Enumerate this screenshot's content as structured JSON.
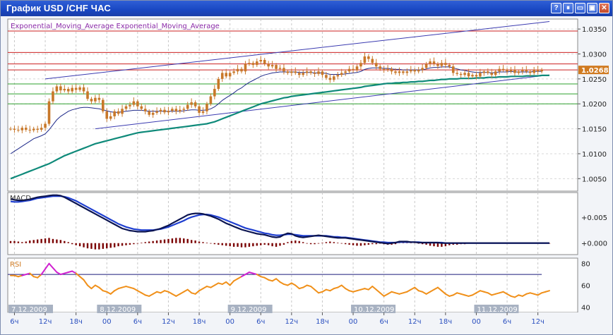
{
  "window": {
    "title": "График USD /CHF  ЧАС",
    "buttons": {
      "help": "?",
      "pause": "⏸",
      "minimize": "▭",
      "restore": "▣",
      "close": "✕"
    }
  },
  "colors": {
    "price_axis_bg": "#ffffff",
    "candle": "#c8782a",
    "fast_ema": "#1f2a8a",
    "slow_ema": "#0f8a7a",
    "upper_channel": "#3a3ab0",
    "red_level": "#cc2020",
    "green_level": "#2ea02e",
    "current_price_bg": "#d07a20",
    "macd_dark": "#0b1450",
    "macd_blue": "#1f3fd0",
    "macd_hist": "#7a0000",
    "rsi_line": "#f0901a",
    "rsi_over": "#d020d0",
    "rsi_level": "#1a1a7a"
  },
  "chart_data": [
    {
      "type": "candlestick",
      "legend": "Exponential_Moving_Average Exponential_Moving_Average",
      "y_ticks": [
        "1.0350",
        "1.0300",
        "1.0250",
        "1.0200",
        "1.0150",
        "1.0100",
        "1.0050"
      ],
      "ylim": [
        1.0025,
        1.037
      ],
      "current_price": "1.0268",
      "grid": true,
      "red_levels": [
        1.0346,
        1.0303,
        1.028,
        1.0268
      ],
      "green_levels": [
        1.024,
        1.022,
        1.02
      ],
      "close": [
        1.015,
        1.0148,
        1.0147,
        1.0152,
        1.0148,
        1.0147,
        1.015,
        1.0148,
        1.0152,
        1.016,
        1.0205,
        1.0225,
        1.0235,
        1.0227,
        1.023,
        1.0225,
        1.0232,
        1.0228,
        1.0233,
        1.0225,
        1.021,
        1.0205,
        1.0212,
        1.0208,
        1.0185,
        1.017,
        1.0175,
        1.0185,
        1.018,
        1.019,
        1.0195,
        1.0198,
        1.0205,
        1.0195,
        1.019,
        1.0185,
        1.0178,
        1.0182,
        1.0185,
        1.0188,
        1.0183,
        1.0186,
        1.019,
        1.0185,
        1.0188,
        1.019,
        1.0198,
        1.0203,
        1.0195,
        1.0182,
        1.0185,
        1.02,
        1.0215,
        1.023,
        1.025,
        1.0262,
        1.0255,
        1.0262,
        1.0265,
        1.027,
        1.0265,
        1.028,
        1.0282,
        1.0278,
        1.0285,
        1.0288,
        1.028,
        1.0275,
        1.0278,
        1.027,
        1.0272,
        1.0265,
        1.0262,
        1.0265,
        1.0262,
        1.0258,
        1.0262,
        1.0265,
        1.0262,
        1.026,
        1.0265,
        1.0258,
        1.0252,
        1.0248,
        1.0255,
        1.0258,
        1.0262,
        1.0265,
        1.027,
        1.0268,
        1.0275,
        1.0282,
        1.0295,
        1.029,
        1.0282,
        1.0275,
        1.027,
        1.0268,
        1.027,
        1.0265,
        1.0262,
        1.0265,
        1.0262,
        1.0265,
        1.0268,
        1.0265,
        1.0268,
        1.0272,
        1.028,
        1.0285,
        1.028,
        1.0276,
        1.0282,
        1.0278,
        1.0275,
        1.0262,
        1.026,
        1.0258,
        1.0262,
        1.0255,
        1.0258,
        1.0255,
        1.0262,
        1.0265,
        1.0262,
        1.0258,
        1.0265,
        1.027,
        1.0268,
        1.0265,
        1.0268,
        1.0262,
        1.0265,
        1.0268,
        1.0265,
        1.0262,
        1.0268,
        1.0265,
        1.0268
      ],
      "fast_ema": [
        1.01,
        1.0105,
        1.011,
        1.0115,
        1.012,
        1.0125,
        1.013,
        1.0133,
        1.0136,
        1.014,
        1.0148,
        1.0158,
        1.0168,
        1.0175,
        1.018,
        1.0185,
        1.0188,
        1.019,
        1.0192,
        1.0193,
        1.0193,
        1.0192,
        1.0191,
        1.019,
        1.0188,
        1.0186,
        1.0184,
        1.0183,
        1.0183,
        1.0184,
        1.0185,
        1.0186,
        1.0187,
        1.0187,
        1.0187,
        1.0186,
        1.0185,
        1.0185,
        1.0185,
        1.0185,
        1.0185,
        1.0185,
        1.0185,
        1.0185,
        1.0185,
        1.0186,
        1.0187,
        1.0188,
        1.0188,
        1.0187,
        1.0187,
        1.0188,
        1.019,
        1.0194,
        1.02,
        1.0207,
        1.0212,
        1.0217,
        1.0222,
        1.0228,
        1.0232,
        1.0238,
        1.0243,
        1.0247,
        1.0251,
        1.0255,
        1.0258,
        1.026,
        1.0262,
        1.0263,
        1.0264,
        1.0264,
        1.0264,
        1.0264,
        1.0264,
        1.0263,
        1.0263,
        1.0263,
        1.0263,
        1.0262,
        1.0262,
        1.0262,
        1.0261,
        1.0259,
        1.0259,
        1.0259,
        1.0259,
        1.026,
        1.0261,
        1.0262,
        1.0263,
        1.0265,
        1.0269,
        1.0271,
        1.0272,
        1.0272,
        1.0272,
        1.0271,
        1.0271,
        1.027,
        1.0269,
        1.0269,
        1.0268,
        1.0268,
        1.0268,
        1.0268,
        1.0268,
        1.0268,
        1.027,
        1.0272,
        1.0273,
        1.0273,
        1.0274,
        1.0274,
        1.0274,
        1.0272,
        1.027,
        1.0268,
        1.0267,
        1.0265,
        1.0264,
        1.0263,
        1.0263,
        1.0263,
        1.0263,
        1.0262,
        1.0263,
        1.0264,
        1.0264,
        1.0264,
        1.0265,
        1.0264,
        1.0264,
        1.0264,
        1.0264,
        1.0264,
        1.0265,
        1.0265,
        1.0265
      ],
      "slow_ema": [
        1.005,
        1.0053,
        1.0056,
        1.0059,
        1.0062,
        1.0065,
        1.0068,
        1.0071,
        1.0074,
        1.0077,
        1.008,
        1.0084,
        1.0088,
        1.0092,
        1.0096,
        1.0099,
        1.0102,
        1.0105,
        1.0108,
        1.0111,
        1.0114,
        1.0117,
        1.012,
        1.0122,
        1.0124,
        1.0126,
        1.0128,
        1.013,
        1.0132,
        1.0134,
        1.0136,
        1.0138,
        1.014,
        1.0142,
        1.0143,
        1.0144,
        1.0145,
        1.0146,
        1.0147,
        1.0148,
        1.0149,
        1.015,
        1.0151,
        1.0152,
        1.0153,
        1.0154,
        1.0155,
        1.0156,
        1.0157,
        1.0158,
        1.0159,
        1.016,
        1.0162,
        1.0164,
        1.0167,
        1.017,
        1.0173,
        1.0176,
        1.0179,
        1.0182,
        1.0185,
        1.0188,
        1.0191,
        1.0194,
        1.0197,
        1.02,
        1.0202,
        1.0204,
        1.0206,
        1.0208,
        1.021,
        1.0212,
        1.0213,
        1.0215,
        1.0216,
        1.0217,
        1.0218,
        1.0219,
        1.022,
        1.0221,
        1.0222,
        1.0223,
        1.0224,
        1.0225,
        1.0226,
        1.0227,
        1.0228,
        1.0229,
        1.023,
        1.0231,
        1.0232,
        1.0233,
        1.0235,
        1.0236,
        1.0237,
        1.0238,
        1.0239,
        1.024,
        1.0241,
        1.0241,
        1.0242,
        1.0242,
        1.0243,
        1.0243,
        1.0244,
        1.0244,
        1.0245,
        1.0245,
        1.0246,
        1.0247,
        1.0247,
        1.0248,
        1.0249,
        1.0249,
        1.025,
        1.025,
        1.025,
        1.0251,
        1.0251,
        1.0251,
        1.0251,
        1.0252,
        1.0252,
        1.0252,
        1.0253,
        1.0253,
        1.0253,
        1.0254,
        1.0254,
        1.0254,
        1.0255,
        1.0255,
        1.0255,
        1.0255,
        1.0256,
        1.0256,
        1.0256,
        1.0256,
        1.0257,
        1.0257,
        1.0257
      ],
      "upper_channel": [
        [
          9,
          1.025
        ],
        [
          140,
          1.0365
        ]
      ],
      "lower_channel": [
        [
          22,
          1.015
        ],
        [
          140,
          1.0258
        ]
      ],
      "x_labels": [
        {
          "bar": 0,
          "text": "7.12.2009",
          "date": true
        },
        {
          "bar": 1,
          "text": "6ч"
        },
        {
          "bar": 9,
          "text": "12ч"
        },
        {
          "bar": 17,
          "text": "18ч"
        },
        {
          "bar": 23,
          "text": "8.12.2009",
          "date": true
        },
        {
          "bar": 25,
          "text": "00"
        },
        {
          "bar": 33,
          "text": "6ч"
        },
        {
          "bar": 41,
          "text": "12ч"
        },
        {
          "bar": 49,
          "text": "18ч"
        },
        {
          "bar": 57,
          "text": "9.12.2009",
          "date": true
        },
        {
          "bar": 57,
          "text": "00"
        },
        {
          "bar": 65,
          "text": "6ч"
        },
        {
          "bar": 73,
          "text": "12ч"
        },
        {
          "bar": 81,
          "text": "18ч"
        },
        {
          "bar": 89,
          "text": "10.12.2009",
          "date": true
        },
        {
          "bar": 89,
          "text": "00"
        },
        {
          "bar": 97,
          "text": "6ч"
        },
        {
          "bar": 105,
          "text": "12ч"
        },
        {
          "bar": 113,
          "text": "18ч"
        },
        {
          "bar": 121,
          "text": "11.12.2009",
          "date": true
        },
        {
          "bar": 121,
          "text": "00"
        },
        {
          "bar": 129,
          "text": "6ч"
        },
        {
          "bar": 137,
          "text": "12ч"
        }
      ]
    },
    {
      "type": "line",
      "legend": "MACD",
      "y_ticks": [
        "+0.005",
        "+0.000"
      ],
      "ylim": [
        -0.0022,
        0.0097
      ],
      "macd": [
        0.0085,
        0.0083,
        0.0082,
        0.0082,
        0.0083,
        0.0084,
        0.0086,
        0.0088,
        0.0089,
        0.009,
        0.0091,
        0.0092,
        0.0092,
        0.0091,
        0.0088,
        0.0084,
        0.008,
        0.0076,
        0.0072,
        0.0068,
        0.0064,
        0.006,
        0.0056,
        0.0052,
        0.0048,
        0.0044,
        0.004,
        0.0036,
        0.0032,
        0.0028,
        0.0026,
        0.0024,
        0.0023,
        0.0022,
        0.0022,
        0.0022,
        0.0023,
        0.0024,
        0.0026,
        0.0028,
        0.0031,
        0.0034,
        0.0038,
        0.0042,
        0.0046,
        0.005,
        0.0054,
        0.0056,
        0.0057,
        0.0057,
        0.0056,
        0.0054,
        0.0052,
        0.0049,
        0.0046,
        0.0042,
        0.0038,
        0.0035,
        0.0032,
        0.0029,
        0.0026,
        0.0024,
        0.0022,
        0.002,
        0.0018,
        0.0017,
        0.0016,
        0.0014,
        0.0012,
        0.0011,
        0.0012,
        0.0016,
        0.0019,
        0.0018,
        0.0014,
        0.0012,
        0.0011,
        0.0012,
        0.0013,
        0.0014,
        0.0015,
        0.0014,
        0.0013,
        0.0012,
        0.0011,
        0.001,
        0.001,
        0.001,
        0.0009,
        0.0008,
        0.0007,
        0.0006,
        0.0005,
        0.0004,
        0.0003,
        0.0002,
        0.0001,
        0.0,
        -0.0001,
        0.0,
        0.0001,
        0.0003,
        0.0003,
        0.0003,
        0.0002,
        0.0002,
        0.0001,
        0.0001,
        0.0001,
        0.0001,
        0.0001,
        0.0001,
        0.0,
        0.0,
        0.0,
        0.0,
        0.0,
        0.0,
        0.0,
        0.0,
        0.0,
        0.0,
        0.0,
        0.0,
        0.0,
        0.0,
        0.0,
        0.0,
        0.0,
        0.0,
        0.0,
        0.0,
        0.0,
        0.0,
        0.0,
        0.0,
        0.0,
        0.0,
        0.0,
        0.0,
        0.0
      ],
      "signal": [
        0.008,
        0.0079,
        0.0079,
        0.008,
        0.0081,
        0.0082,
        0.0084,
        0.0086,
        0.0087,
        0.0088,
        0.0089,
        0.009,
        0.009,
        0.009,
        0.0089,
        0.0087,
        0.0084,
        0.0081,
        0.0077,
        0.0073,
        0.0069,
        0.0065,
        0.0061,
        0.0057,
        0.0053,
        0.0049,
        0.0045,
        0.0041,
        0.0037,
        0.0034,
        0.0031,
        0.0029,
        0.0027,
        0.0026,
        0.0025,
        0.0025,
        0.0025,
        0.0025,
        0.0026,
        0.0027,
        0.0029,
        0.0031,
        0.0034,
        0.0037,
        0.004,
        0.0043,
        0.0047,
        0.005,
        0.0052,
        0.0054,
        0.0055,
        0.0055,
        0.0054,
        0.0052,
        0.005,
        0.0047,
        0.0044,
        0.0041,
        0.0038,
        0.0035,
        0.0032,
        0.0029,
        0.0027,
        0.0025,
        0.0023,
        0.0021,
        0.0019,
        0.0018,
        0.0016,
        0.0015,
        0.0015,
        0.0016,
        0.0017,
        0.0017,
        0.0016,
        0.0015,
        0.0014,
        0.0014,
        0.0014,
        0.0014,
        0.0014,
        0.0014,
        0.0014,
        0.0013,
        0.0012,
        0.0012,
        0.0011,
        0.0011,
        0.001,
        0.0009,
        0.0008,
        0.0007,
        0.0006,
        0.0005,
        0.0004,
        0.0003,
        0.0002,
        0.0002,
        0.0001,
        0.0001,
        0.0001,
        0.0002,
        0.0002,
        0.0002,
        0.0002,
        0.0002,
        0.0002,
        0.0001,
        0.0001,
        0.0001,
        0.0001,
        0.0001,
        0.0001,
        0.0,
        0.0,
        0.0,
        0.0,
        0.0,
        0.0,
        0.0,
        0.0,
        0.0,
        0.0,
        0.0,
        0.0,
        0.0,
        0.0,
        0.0,
        0.0,
        0.0,
        0.0,
        0.0,
        0.0,
        0.0,
        0.0,
        0.0,
        0.0,
        0.0,
        0.0,
        0.0,
        0.0
      ],
      "histogram": [
        0.0004,
        0.0004,
        0.0003,
        0.0002,
        0.0003,
        0.0005,
        0.0006,
        0.0007,
        0.0008,
        0.0009,
        0.001,
        0.0008,
        0.0007,
        0.0006,
        0.0004,
        0.0002,
        -0.0002,
        -0.0004,
        -0.0006,
        -0.0008,
        -0.001,
        -0.0011,
        -0.0012,
        -0.0012,
        -0.0011,
        -0.001,
        -0.0009,
        -0.0008,
        -0.0006,
        -0.0005,
        -0.0004,
        -0.0003,
        -0.0002,
        -0.0001,
        0.0001,
        0.0002,
        0.0003,
        0.0004,
        0.0005,
        0.0006,
        0.0007,
        0.0008,
        0.0009,
        0.001,
        0.001,
        0.0009,
        0.0008,
        0.0006,
        0.0005,
        0.0003,
        0.0002,
        0.0001,
        -0.0001,
        -0.0002,
        -0.0003,
        -0.0004,
        -0.0005,
        -0.0006,
        -0.0007,
        -0.0007,
        -0.0008,
        -0.0008,
        -0.0007,
        -0.0006,
        -0.0005,
        -0.0004,
        -0.0003,
        -0.0004,
        -0.0006,
        -0.0007,
        -0.0005,
        -0.0003,
        0.0002,
        0.0004,
        0.0005,
        0.0004,
        0.0002,
        -0.0001,
        -0.0002,
        -0.0002,
        -0.0001,
        0.0001,
        0.0002,
        0.0003,
        0.0002,
        0.0001,
        -0.0001,
        -0.0002,
        -0.0003,
        -0.0004,
        -0.0005,
        -0.0005,
        -0.0004,
        -0.0003,
        -0.0002,
        -0.0002,
        -0.0001,
        -0.0002,
        -0.0003,
        -0.0003,
        -0.0002,
        0.0002,
        0.0002,
        0.0002,
        0.0001,
        0.0001,
        -0.0001,
        -0.0002,
        -0.0003,
        -0.0005,
        -0.0006,
        -0.0007,
        -0.0007,
        -0.0006,
        -0.0004,
        -0.0003,
        -0.0003,
        -0.0002,
        -0.0002,
        -0.0001,
        -0.0001,
        -0.0001,
        -0.0001,
        -0.0001,
        -0.0001,
        -0.0001,
        -0.0001,
        -0.0001,
        -0.0001,
        -0.0001,
        -0.0001,
        -0.0001,
        -0.0001,
        -0.0001,
        -0.0001,
        -0.0001,
        -0.0001,
        -0.0001,
        -0.0001,
        -0.0001,
        -0.0001
      ]
    },
    {
      "type": "line",
      "legend": "RSI",
      "y_ticks": [
        "80",
        "60",
        "40"
      ],
      "ylim": [
        35,
        85
      ],
      "level": 70,
      "overbought": 70,
      "rsi": [
        69,
        69,
        68,
        69,
        70,
        71,
        68,
        67,
        70,
        75,
        80,
        76,
        72,
        70,
        71,
        72,
        73,
        71,
        68,
        65,
        60,
        57,
        60,
        58,
        55,
        54,
        52,
        55,
        57,
        58,
        59,
        58,
        57,
        55,
        53,
        51,
        50,
        52,
        54,
        53,
        55,
        54,
        52,
        50,
        52,
        54,
        56,
        53,
        52,
        55,
        57,
        59,
        58,
        60,
        62,
        61,
        63,
        60,
        64,
        66,
        68,
        70,
        72,
        71,
        70,
        68,
        67,
        65,
        64,
        66,
        63,
        61,
        60,
        62,
        60,
        57,
        58,
        60,
        59,
        56,
        53,
        54,
        56,
        55,
        57,
        58,
        60,
        57,
        55,
        54,
        55,
        56,
        57,
        56,
        59,
        56,
        53,
        50,
        52,
        54,
        53,
        52,
        53,
        54,
        56,
        58,
        55,
        54,
        52,
        54,
        56,
        58,
        55,
        52,
        50,
        51,
        53,
        52,
        51,
        50,
        51,
        53,
        55,
        54,
        53,
        51,
        52,
        53,
        54,
        52,
        50,
        49,
        51,
        50,
        52,
        53,
        52,
        51,
        53,
        54,
        55
      ]
    }
  ]
}
